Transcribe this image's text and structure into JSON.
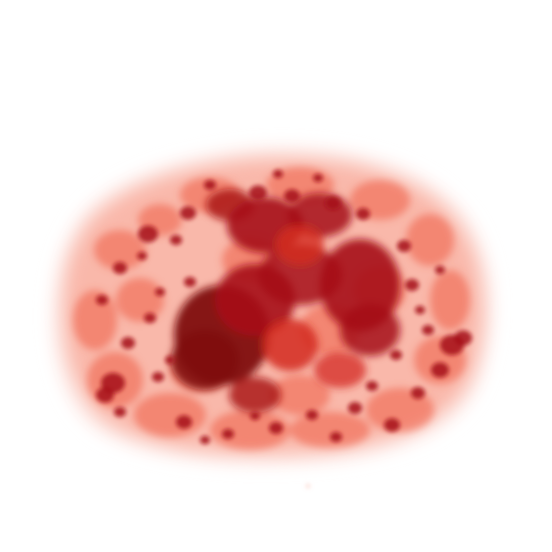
{
  "image": {
    "subject": "red-heatmap-blob",
    "palette": {
      "background": "#ffffff",
      "halo": "#fde7e3",
      "light": "#f9b8aa",
      "mid": "#ee5b45",
      "strong": "#d42a20",
      "dark": "#a60e14",
      "darkest": "#7f0a10"
    }
  }
}
